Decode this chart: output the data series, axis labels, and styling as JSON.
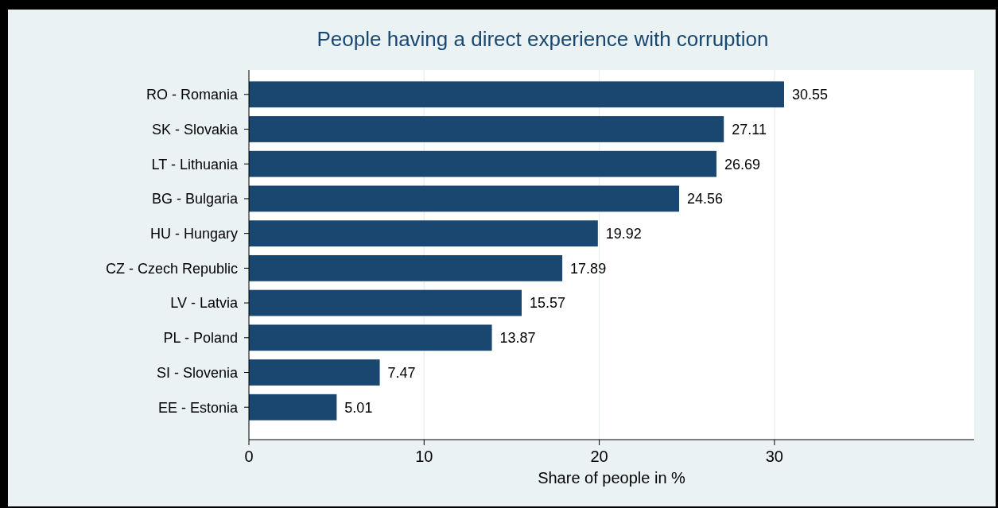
{
  "chart_data": {
    "type": "bar",
    "orientation": "horizontal",
    "title": "People having a direct experience with corruption",
    "xlabel": "Share of people in %",
    "categories": [
      "RO - Romania",
      "SK - Slovakia",
      "LT - Lithuania",
      "BG - Bulgaria",
      "HU - Hungary",
      "CZ - Czech Republic",
      "LV - Latvia",
      "PL - Poland",
      "SI - Slovenia",
      "EE - Estonia"
    ],
    "values": [
      30.55,
      27.11,
      26.69,
      24.56,
      19.92,
      17.89,
      15.57,
      13.87,
      7.47,
      5.01
    ],
    "color": "#1a476f",
    "xlim": [
      0,
      41.4
    ],
    "xticks": [
      0,
      10,
      20,
      30
    ],
    "grid": "x",
    "data_labels": true
  }
}
